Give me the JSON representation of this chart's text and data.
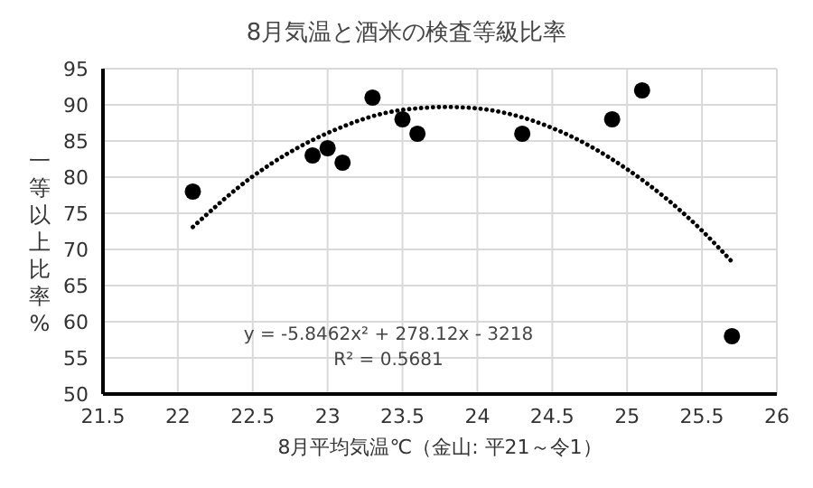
{
  "chart_data": {
    "type": "scatter",
    "title": "8月気温と酒米の検査等級比率",
    "xlabel": "8月平均気温℃（金山: 平21～令1）",
    "ylabel": "一等以上比率%",
    "xlim": [
      21.5,
      26
    ],
    "xticks": [
      21.5,
      22,
      22.5,
      23,
      23.5,
      24,
      24.5,
      25,
      25.5,
      26
    ],
    "ylim": [
      50,
      95
    ],
    "yticks": [
      50,
      55,
      60,
      65,
      70,
      75,
      80,
      85,
      90,
      95
    ],
    "grid": true,
    "annotations": [
      "y = -5.8462x² + 278.12x - 3218",
      "R² = 0.5681"
    ],
    "series": [
      {
        "color": "#000000",
        "marker": "circle",
        "x": [
          22.1,
          22.9,
          23.0,
          23.1,
          23.3,
          23.5,
          23.6,
          24.3,
          24.9,
          25.1,
          25.7
        ],
        "values": [
          78,
          83,
          84,
          82,
          91,
          88,
          86,
          86,
          88,
          92,
          58
        ]
      },
      {
        "type": "line",
        "color": "#000000",
        "line_style": "dotted",
        "marker": "none",
        "x": [
          22.1,
          22.5,
          23,
          23.5,
          23.8,
          24,
          24.5,
          25,
          25.5,
          25.7
        ],
        "values": [
          73.1,
          80.1,
          86.1,
          89.3,
          89.7,
          89.5,
          86.8,
          81.1,
          72.6,
          68.3
        ]
      }
    ]
  }
}
